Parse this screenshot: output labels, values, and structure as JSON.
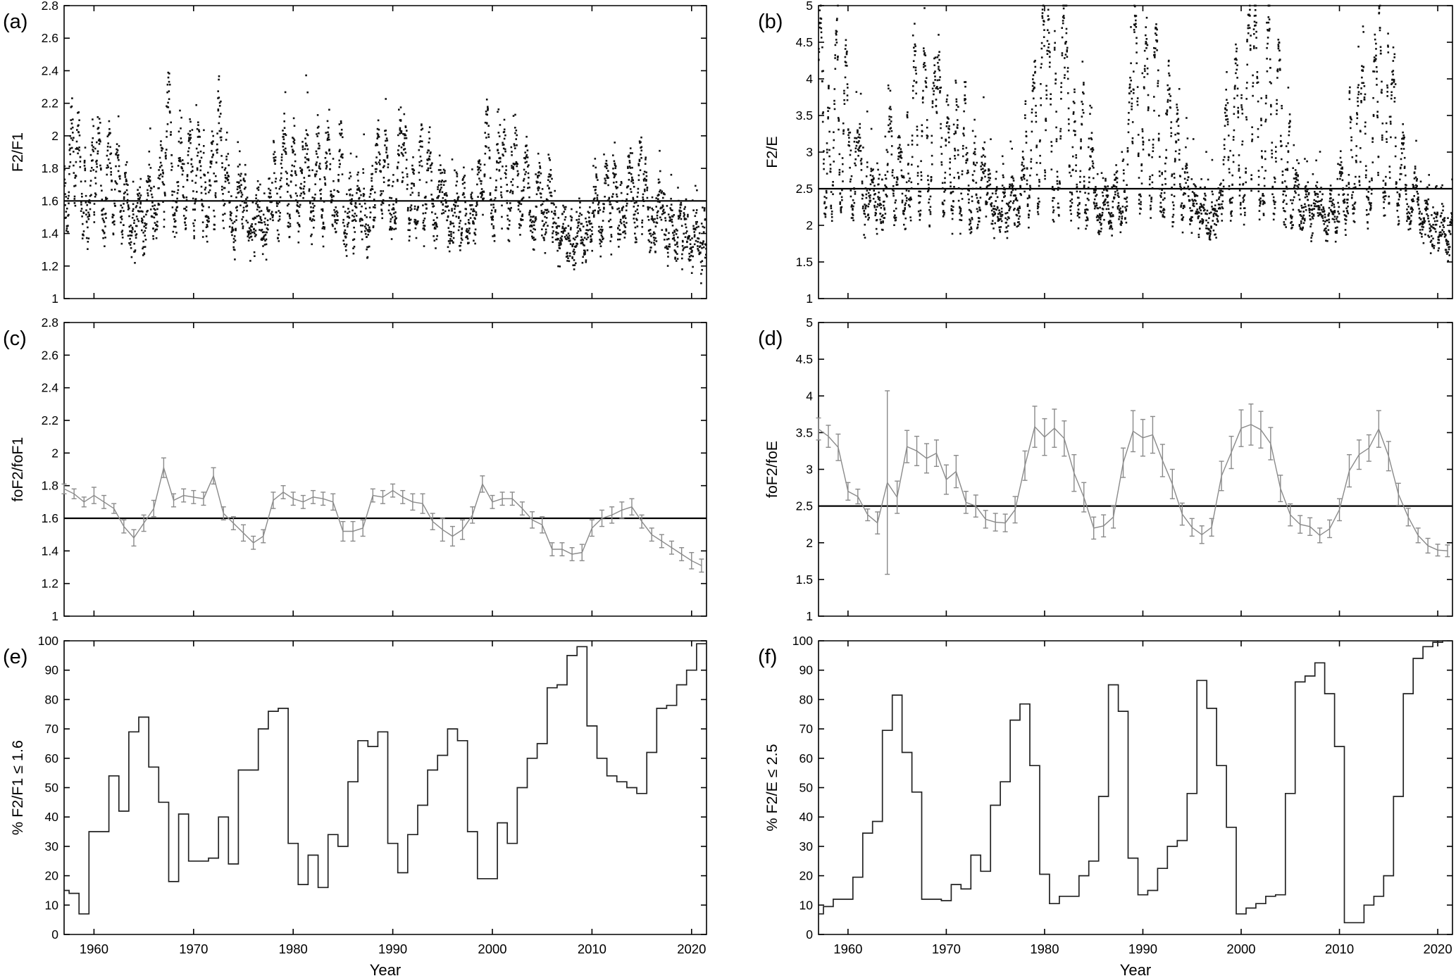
{
  "figure": {
    "background": "#ffffff"
  },
  "colors": {
    "axis": "#000000",
    "scatter_points": "#111111",
    "series_line": "#8a8a8a",
    "threshold_line": "#000000",
    "step_line": "#222222"
  },
  "chart_data": {
    "type": "multi-panel",
    "x_axis": {
      "label": "Year",
      "range": [
        1957,
        2021.5
      ],
      "ticks": [
        1960,
        1970,
        1980,
        1990,
        2000,
        2010,
        2020
      ],
      "tick_labels": [
        "1960",
        "1970",
        "1980",
        "1990",
        "2000",
        "2010",
        "2020"
      ]
    },
    "years": [
      1957,
      1958,
      1959,
      1960,
      1961,
      1962,
      1963,
      1964,
      1965,
      1966,
      1967,
      1968,
      1969,
      1970,
      1971,
      1972,
      1973,
      1974,
      1975,
      1976,
      1977,
      1978,
      1979,
      1980,
      1981,
      1982,
      1983,
      1984,
      1985,
      1986,
      1987,
      1988,
      1989,
      1990,
      1991,
      1992,
      1993,
      1994,
      1995,
      1996,
      1997,
      1998,
      1999,
      2000,
      2001,
      2002,
      2003,
      2004,
      2005,
      2006,
      2007,
      2008,
      2009,
      2010,
      2011,
      2012,
      2013,
      2014,
      2015,
      2016,
      2017,
      2018,
      2019,
      2020,
      2021
    ],
    "panels": [
      {
        "id": "a",
        "label": "(a)",
        "row": 0,
        "col": 0,
        "type": "scatter",
        "ylabel": "F2/F1",
        "ylim": [
          1,
          2.8
        ],
        "yticks": [
          "1",
          "1.2",
          "1.4",
          "1.6",
          "1.8",
          "2",
          "2.2",
          "2.4",
          "2.6",
          "2.8"
        ],
        "threshold": 1.6,
        "scatter": {
          "seed": 11,
          "means_from": "c",
          "per_column": 4,
          "amp_base": 0.1,
          "amp_gain": 0.55,
          "amp_pivot": 1.42,
          "spread": 0.17,
          "outlier_p": 0.05,
          "outlier_mag": 0.3,
          "clip": [
            1.06,
            2.78
          ]
        }
      },
      {
        "id": "b",
        "label": "(b)",
        "row": 0,
        "col": 1,
        "type": "scatter",
        "ylabel": "F2/E",
        "ylim": [
          1,
          5
        ],
        "yticks": [
          "1",
          "1.5",
          "2",
          "2.5",
          "3",
          "3.5",
          "4",
          "4.5",
          "5"
        ],
        "threshold": 2.5,
        "scatter": {
          "seed": 23,
          "means_from": "d",
          "per_column": 4,
          "amp_base": 0.18,
          "amp_gain": 0.85,
          "amp_pivot": 2.2,
          "spread": 0.28,
          "outlier_p": 0.07,
          "outlier_mag": 0.8,
          "clip": [
            1.32,
            5.0
          ]
        }
      },
      {
        "id": "c",
        "label": "(c)",
        "row": 1,
        "col": 0,
        "type": "errorbar",
        "ylabel": "foF2/foF1",
        "ylim": [
          1,
          2.8
        ],
        "yticks": [
          "1",
          "1.2",
          "1.4",
          "1.6",
          "1.8",
          "2",
          "2.2",
          "2.4",
          "2.6",
          "2.8"
        ],
        "threshold": 1.6,
        "values": [
          1.78,
          1.75,
          1.7,
          1.74,
          1.7,
          1.66,
          1.55,
          1.48,
          1.57,
          1.66,
          1.91,
          1.71,
          1.74,
          1.73,
          1.72,
          1.86,
          1.63,
          1.57,
          1.51,
          1.45,
          1.49,
          1.71,
          1.76,
          1.72,
          1.7,
          1.73,
          1.72,
          1.7,
          1.52,
          1.52,
          1.54,
          1.74,
          1.73,
          1.77,
          1.73,
          1.7,
          1.69,
          1.58,
          1.53,
          1.49,
          1.53,
          1.62,
          1.81,
          1.7,
          1.72,
          1.72,
          1.66,
          1.59,
          1.56,
          1.41,
          1.41,
          1.38,
          1.39,
          1.54,
          1.6,
          1.62,
          1.65,
          1.67,
          1.58,
          1.5,
          1.46,
          1.42,
          1.38,
          1.34,
          1.31
        ],
        "errors": [
          0.03,
          0.03,
          0.03,
          0.05,
          0.04,
          0.03,
          0.04,
          0.05,
          0.05,
          0.05,
          0.06,
          0.04,
          0.04,
          0.04,
          0.04,
          0.05,
          0.04,
          0.04,
          0.05,
          0.04,
          0.04,
          0.05,
          0.04,
          0.04,
          0.04,
          0.04,
          0.04,
          0.05,
          0.06,
          0.06,
          0.05,
          0.04,
          0.04,
          0.04,
          0.04,
          0.05,
          0.06,
          0.05,
          0.07,
          0.06,
          0.06,
          0.05,
          0.05,
          0.04,
          0.04,
          0.04,
          0.04,
          0.05,
          0.05,
          0.04,
          0.04,
          0.04,
          0.05,
          0.05,
          0.05,
          0.05,
          0.05,
          0.05,
          0.04,
          0.04,
          0.04,
          0.04,
          0.04,
          0.05,
          0.04
        ]
      },
      {
        "id": "d",
        "label": "(d)",
        "row": 1,
        "col": 1,
        "type": "errorbar",
        "ylabel": "foF2/foE",
        "ylim": [
          1,
          5
        ],
        "yticks": [
          "1",
          "1.5",
          "2",
          "2.5",
          "3",
          "3.5",
          "4",
          "4.5",
          "5"
        ],
        "threshold": 2.5,
        "values": [
          3.55,
          3.45,
          3.3,
          2.7,
          2.63,
          2.38,
          2.27,
          2.82,
          2.62,
          3.31,
          3.25,
          3.15,
          3.22,
          2.86,
          2.97,
          2.55,
          2.5,
          2.32,
          2.28,
          2.27,
          2.45,
          3.05,
          3.58,
          3.44,
          3.56,
          3.42,
          2.95,
          2.62,
          2.2,
          2.23,
          2.35,
          3.09,
          3.52,
          3.43,
          3.47,
          3.12,
          2.8,
          2.39,
          2.21,
          2.11,
          2.21,
          2.91,
          3.23,
          3.56,
          3.61,
          3.54,
          3.35,
          2.74,
          2.38,
          2.25,
          2.22,
          2.1,
          2.19,
          2.45,
          2.98,
          3.2,
          3.29,
          3.55,
          3.18,
          2.66,
          2.35,
          2.1,
          1.96,
          1.9,
          1.89
        ],
        "errors": [
          0.15,
          0.15,
          0.18,
          0.12,
          0.1,
          0.08,
          0.15,
          1.25,
          0.22,
          0.22,
          0.2,
          0.2,
          0.18,
          0.2,
          0.22,
          0.15,
          0.15,
          0.12,
          0.12,
          0.12,
          0.18,
          0.2,
          0.28,
          0.25,
          0.26,
          0.24,
          0.25,
          0.2,
          0.15,
          0.15,
          0.15,
          0.2,
          0.28,
          0.25,
          0.25,
          0.22,
          0.2,
          0.15,
          0.12,
          0.12,
          0.12,
          0.2,
          0.22,
          0.25,
          0.28,
          0.25,
          0.22,
          0.18,
          0.15,
          0.12,
          0.12,
          0.1,
          0.12,
          0.15,
          0.22,
          0.2,
          0.18,
          0.25,
          0.2,
          0.15,
          0.12,
          0.1,
          0.1,
          0.08,
          0.08
        ]
      },
      {
        "id": "e",
        "label": "(e)",
        "row": 2,
        "col": 0,
        "type": "step",
        "ylabel": "% F2/F1 ≤ 1.6",
        "ylim": [
          0,
          100
        ],
        "yticks": [
          "0",
          "10",
          "20",
          "30",
          "40",
          "50",
          "60",
          "70",
          "80",
          "90",
          "100"
        ],
        "threshold": null,
        "values": [
          15,
          14,
          7,
          35,
          35,
          54,
          42,
          69,
          74,
          57,
          45,
          18,
          41,
          25,
          25,
          26,
          40,
          24,
          56,
          56,
          70,
          76,
          77,
          31,
          17,
          27,
          16,
          34,
          30,
          52,
          66,
          64,
          69,
          31,
          21,
          34,
          44,
          56,
          61,
          70,
          66,
          35,
          19,
          19,
          38,
          31,
          50,
          60,
          65,
          84,
          85,
          95,
          98,
          71,
          60,
          54,
          52,
          50,
          48,
          62,
          77,
          78,
          85,
          90,
          99
        ]
      },
      {
        "id": "f",
        "label": "(f)",
        "row": 2,
        "col": 1,
        "type": "step",
        "ylabel": "% F2/E ≤ 2.5",
        "ylim": [
          0,
          100
        ],
        "yticks": [
          "0",
          "10",
          "20",
          "30",
          "40",
          "50",
          "60",
          "70",
          "80",
          "90",
          "100"
        ],
        "threshold": null,
        "values": [
          7,
          9.5,
          12,
          12,
          19.5,
          34.5,
          38.5,
          69.5,
          81.5,
          62,
          48.5,
          12,
          12,
          11.5,
          17,
          15.5,
          27,
          21.5,
          44,
          52,
          73,
          78.5,
          57.5,
          20.5,
          10.5,
          13,
          13,
          20,
          25,
          47,
          85,
          76,
          26,
          13.5,
          15,
          22.5,
          30,
          32,
          48,
          86.5,
          77,
          57.5,
          36.5,
          7,
          9,
          10.5,
          13,
          13.5,
          48,
          86,
          88,
          92.5,
          82,
          64,
          4,
          4,
          10,
          13,
          20,
          47,
          82,
          94,
          98,
          99.5,
          100
        ]
      }
    ]
  }
}
